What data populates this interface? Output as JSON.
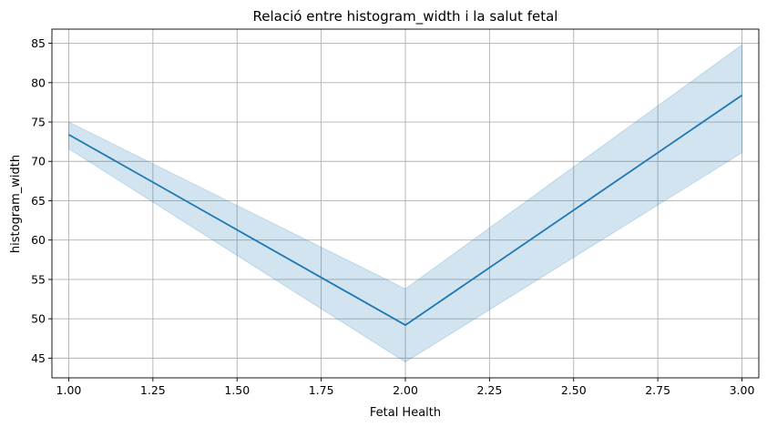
{
  "chart_data": {
    "type": "line",
    "title": "Relació entre histogram_width i la salut fetal",
    "xlabel": "Fetal Health",
    "ylabel": "histogram_width",
    "xlim": [
      0.95,
      3.05
    ],
    "ylim": [
      42.5,
      86.8
    ],
    "grid": true,
    "xticks": [
      1.0,
      1.25,
      1.5,
      1.75,
      2.0,
      2.25,
      2.5,
      2.75,
      3.0
    ],
    "xtick_labels": [
      "1.00",
      "1.25",
      "1.50",
      "1.75",
      "2.00",
      "2.25",
      "2.50",
      "2.75",
      "3.00"
    ],
    "yticks": [
      45,
      50,
      55,
      60,
      65,
      70,
      75,
      80,
      85
    ],
    "ytick_labels": [
      "45",
      "50",
      "55",
      "60",
      "65",
      "70",
      "75",
      "80",
      "85"
    ],
    "series": [
      {
        "x": [
          1.0,
          2.0,
          3.0
        ],
        "values": [
          73.4,
          49.2,
          78.4
        ],
        "ci_lower": [
          71.6,
          44.5,
          71.1
        ],
        "ci_upper": [
          75.0,
          53.8,
          84.8
        ],
        "color": "#1f77b4",
        "band_color": "#1f77b4"
      }
    ]
  }
}
